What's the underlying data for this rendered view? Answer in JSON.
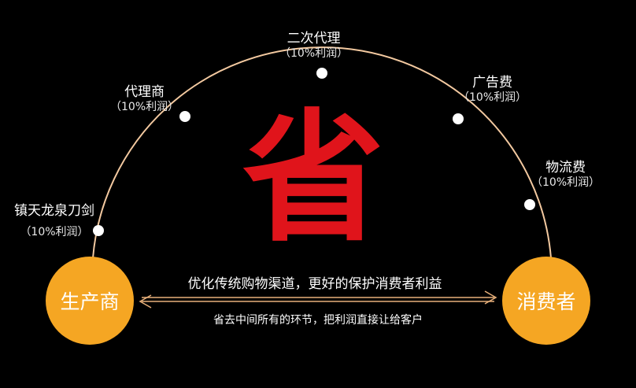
{
  "nodes": [
    {
      "name": "镇天龙泉刀剑",
      "sub": "（10%利润）"
    },
    {
      "name": "代理商",
      "sub": "（10%利润）"
    },
    {
      "name": "二次代理",
      "sub": "（10%利润）"
    },
    {
      "name": "广告费",
      "sub": "（10%利润）"
    },
    {
      "name": "物流费",
      "sub": "（10%利润）"
    }
  ],
  "center_char": "省",
  "producer": "生产商",
  "consumer": "消费者",
  "top_message": "优化传统购物渠道，更好的保护消费者利益",
  "bottom_message": "省去中间所有的环节，把利润直接让给客户",
  "colors": {
    "arc": "#f3c9a0",
    "accent_red": "#e0141b",
    "circle": "#f5a623",
    "arrow": "#e8b07a"
  }
}
